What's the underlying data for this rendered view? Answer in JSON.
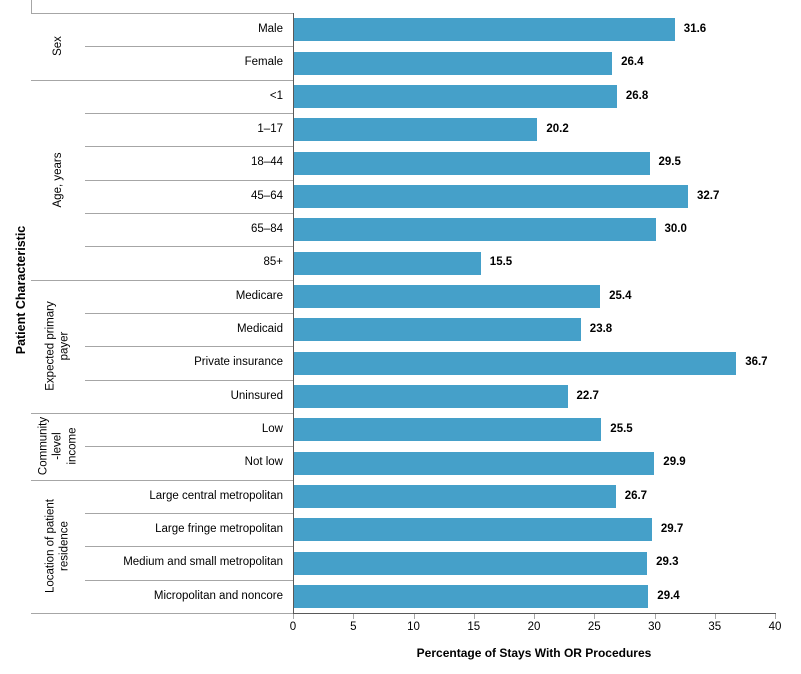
{
  "chart_data": {
    "type": "bar",
    "orientation": "horizontal",
    "title": "",
    "xlabel": "Percentage of Stays With OR Procedures",
    "ylabel": "Patient Characteristic",
    "xlim": [
      0,
      40
    ],
    "xticks": [
      0,
      5,
      10,
      15,
      20,
      25,
      30,
      35,
      40
    ],
    "grid": "off",
    "legend": "none",
    "value_labels_shown": true,
    "groups": [
      {
        "label": "Sex",
        "categories": [
          "Male",
          "Female"
        ],
        "values": [
          31.6,
          26.4
        ]
      },
      {
        "label": "Age, years",
        "categories": [
          "<1",
          "1–17",
          "18–44",
          "45–64",
          "65–84",
          "85+"
        ],
        "values": [
          26.8,
          20.2,
          29.5,
          32.7,
          30.0,
          15.5
        ]
      },
      {
        "label": "Expected primary\npayer",
        "categories": [
          "Medicare",
          "Medicaid",
          "Private insurance",
          "Uninsured"
        ],
        "values": [
          25.4,
          23.8,
          36.7,
          22.7
        ]
      },
      {
        "label": "Community\n-level\nincome",
        "categories": [
          "Low",
          "Not low"
        ],
        "values": [
          25.5,
          29.9
        ]
      },
      {
        "label": "Location of patient\nresidence",
        "categories": [
          "Large central metropolitan",
          "Large fringe metropolitan",
          "Medium and small metropolitan",
          "Micropolitan and noncore"
        ],
        "values": [
          26.7,
          29.7,
          29.3,
          29.4
        ]
      }
    ],
    "colors": {
      "bar": "#45A0C9",
      "axis_line": "#595959",
      "separator_line": "#A6A6A6",
      "tick": "#A6A6A6",
      "text": "#000000"
    }
  }
}
